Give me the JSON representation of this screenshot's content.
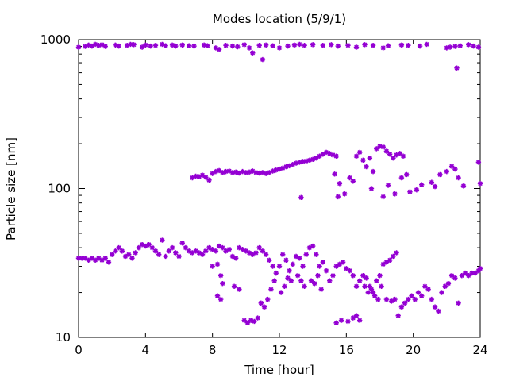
{
  "chart_data": {
    "type": "scatter",
    "title": "Modes location (5/9/1)",
    "xlabel": "Time [hour]",
    "ylabel": "Particle size [nm]",
    "xlim": [
      0,
      24
    ],
    "ylim": [
      10,
      1000
    ],
    "yscale": "log",
    "xticks": [
      0,
      4,
      8,
      12,
      16,
      20,
      24
    ],
    "xtick_labels": [
      "0",
      "4",
      "8",
      "12",
      "16",
      "20",
      "24"
    ],
    "yticks": [
      10,
      100,
      1000
    ],
    "ytick_labels": [
      "10",
      "100",
      "1000"
    ],
    "grid": false,
    "legend": "none",
    "marker": "asterisk",
    "color": "#9400d3",
    "series": [
      {
        "points": [
          [
            0.0,
            890
          ],
          [
            0.4,
            900
          ],
          [
            0.6,
            920
          ],
          [
            0.8,
            905
          ],
          [
            1.0,
            930
          ],
          [
            1.2,
            915
          ],
          [
            1.4,
            925
          ],
          [
            1.6,
            900
          ],
          [
            2.2,
            920
          ],
          [
            2.4,
            905
          ],
          [
            2.9,
            915
          ],
          [
            3.1,
            930
          ],
          [
            3.3,
            925
          ],
          [
            3.8,
            890
          ],
          [
            4.0,
            920
          ],
          [
            4.3,
            905
          ],
          [
            4.6,
            915
          ],
          [
            5.0,
            930
          ],
          [
            5.2,
            910
          ],
          [
            5.6,
            920
          ],
          [
            5.8,
            905
          ],
          [
            6.2,
            920
          ],
          [
            6.6,
            910
          ],
          [
            6.9,
            905
          ],
          [
            7.5,
            920
          ],
          [
            7.7,
            910
          ],
          [
            8.2,
            880
          ],
          [
            8.4,
            860
          ],
          [
            8.8,
            915
          ],
          [
            9.2,
            905
          ],
          [
            9.5,
            895
          ],
          [
            9.9,
            925
          ],
          [
            10.2,
            880
          ],
          [
            10.4,
            815
          ],
          [
            10.8,
            915
          ],
          [
            11.0,
            735
          ],
          [
            11.2,
            920
          ],
          [
            11.6,
            910
          ],
          [
            12.0,
            880
          ],
          [
            12.5,
            905
          ],
          [
            12.9,
            920
          ],
          [
            13.2,
            930
          ],
          [
            13.5,
            915
          ],
          [
            14.0,
            925
          ],
          [
            14.6,
            915
          ],
          [
            15.1,
            925
          ],
          [
            15.5,
            905
          ],
          [
            16.1,
            915
          ],
          [
            16.6,
            890
          ],
          [
            17.1,
            925
          ],
          [
            17.6,
            915
          ],
          [
            18.2,
            880
          ],
          [
            18.5,
            910
          ],
          [
            19.3,
            920
          ],
          [
            19.7,
            915
          ],
          [
            20.4,
            905
          ],
          [
            20.8,
            930
          ],
          [
            22.0,
            880
          ],
          [
            22.2,
            890
          ],
          [
            22.5,
            900
          ],
          [
            22.6,
            645
          ],
          [
            22.8,
            910
          ],
          [
            23.3,
            925
          ],
          [
            23.6,
            905
          ],
          [
            23.9,
            890
          ]
        ]
      },
      {
        "points": [
          [
            6.8,
            118
          ],
          [
            7.0,
            121
          ],
          [
            7.2,
            120
          ],
          [
            7.4,
            123
          ],
          [
            7.6,
            119
          ],
          [
            7.8,
            114
          ],
          [
            8.0,
            126
          ],
          [
            8.2,
            130
          ],
          [
            8.4,
            132
          ],
          [
            8.6,
            128
          ],
          [
            8.8,
            130
          ],
          [
            9.0,
            131
          ],
          [
            9.2,
            128
          ],
          [
            9.4,
            129
          ],
          [
            9.6,
            127
          ],
          [
            9.8,
            130
          ],
          [
            10.0,
            128
          ],
          [
            10.2,
            129
          ],
          [
            10.4,
            131
          ],
          [
            10.6,
            128
          ],
          [
            10.8,
            127
          ],
          [
            11.0,
            128
          ],
          [
            11.2,
            126
          ],
          [
            11.4,
            128
          ],
          [
            11.6,
            131
          ],
          [
            11.8,
            133
          ],
          [
            12.0,
            135
          ],
          [
            12.2,
            137
          ],
          [
            12.4,
            140
          ],
          [
            12.6,
            142
          ],
          [
            12.8,
            145
          ],
          [
            13.0,
            148
          ],
          [
            13.2,
            150
          ],
          [
            13.4,
            152
          ],
          [
            13.6,
            153
          ],
          [
            13.8,
            155
          ],
          [
            14.0,
            157
          ],
          [
            14.2,
            160
          ],
          [
            14.4,
            165
          ],
          [
            14.6,
            170
          ],
          [
            14.8,
            175
          ],
          [
            15.0,
            172
          ],
          [
            15.2,
            168
          ],
          [
            15.4,
            165
          ],
          [
            13.3,
            87
          ],
          [
            15.5,
            88
          ],
          [
            15.3,
            125
          ],
          [
            15.6,
            108
          ],
          [
            15.9,
            92
          ],
          [
            16.2,
            118
          ],
          [
            16.4,
            112
          ],
          [
            16.6,
            165
          ],
          [
            16.8,
            175
          ],
          [
            17.0,
            155
          ],
          [
            17.2,
            140
          ],
          [
            17.4,
            160
          ],
          [
            17.5,
            100
          ],
          [
            17.6,
            130
          ],
          [
            17.8,
            185
          ],
          [
            18.0,
            192
          ],
          [
            18.2,
            190
          ],
          [
            18.4,
            178
          ],
          [
            18.6,
            170
          ],
          [
            18.8,
            160
          ],
          [
            19.0,
            168
          ],
          [
            19.2,
            172
          ],
          [
            19.4,
            165
          ],
          [
            18.2,
            88
          ],
          [
            18.5,
            105
          ],
          [
            18.9,
            92
          ],
          [
            19.3,
            118
          ],
          [
            19.6,
            124
          ],
          [
            19.8,
            95
          ],
          [
            20.2,
            98
          ],
          [
            20.5,
            106
          ],
          [
            21.1,
            110
          ],
          [
            21.3,
            103
          ],
          [
            21.6,
            124
          ],
          [
            22.0,
            130
          ],
          [
            22.3,
            141
          ],
          [
            22.5,
            135
          ],
          [
            22.7,
            118
          ],
          [
            23.0,
            104
          ],
          [
            23.9,
            150
          ],
          [
            24.0,
            108
          ]
        ]
      },
      {
        "points": [
          [
            0.0,
            34
          ],
          [
            0.2,
            34
          ],
          [
            0.4,
            34
          ],
          [
            0.6,
            33
          ],
          [
            0.8,
            34
          ],
          [
            1.0,
            33
          ],
          [
            1.2,
            34
          ],
          [
            1.4,
            33
          ],
          [
            1.6,
            34
          ],
          [
            1.8,
            32
          ],
          [
            2.0,
            36
          ],
          [
            2.2,
            38
          ],
          [
            2.4,
            40
          ],
          [
            2.6,
            38
          ],
          [
            2.8,
            35
          ],
          [
            3.0,
            36
          ],
          [
            3.2,
            34
          ],
          [
            3.4,
            37
          ],
          [
            3.6,
            40
          ],
          [
            3.8,
            42
          ],
          [
            4.0,
            41
          ],
          [
            4.2,
            42
          ],
          [
            4.4,
            40
          ],
          [
            4.6,
            38
          ],
          [
            4.8,
            36
          ],
          [
            5.0,
            45
          ],
          [
            5.2,
            35
          ],
          [
            5.4,
            38
          ],
          [
            5.6,
            40
          ],
          [
            5.8,
            37
          ],
          [
            6.0,
            35
          ],
          [
            6.2,
            43
          ],
          [
            6.4,
            40
          ],
          [
            6.6,
            38
          ],
          [
            6.8,
            37
          ],
          [
            7.0,
            38
          ],
          [
            7.2,
            37
          ],
          [
            7.4,
            36
          ],
          [
            7.6,
            38
          ],
          [
            7.8,
            40
          ],
          [
            8.0,
            39
          ],
          [
            8.2,
            38
          ],
          [
            8.4,
            41
          ],
          [
            8.6,
            40
          ],
          [
            8.8,
            38
          ],
          [
            9.0,
            39
          ],
          [
            9.2,
            35
          ],
          [
            9.4,
            34
          ],
          [
            9.6,
            40
          ],
          [
            9.8,
            39
          ],
          [
            10.0,
            38
          ],
          [
            10.2,
            37
          ],
          [
            10.4,
            36
          ],
          [
            10.6,
            37
          ],
          [
            10.8,
            40
          ],
          [
            11.0,
            38
          ],
          [
            11.2,
            36
          ],
          [
            11.4,
            33
          ],
          [
            11.6,
            30
          ],
          [
            11.8,
            27
          ],
          [
            12.0,
            30
          ],
          [
            12.2,
            36
          ],
          [
            12.4,
            33
          ],
          [
            12.6,
            28
          ],
          [
            12.8,
            31
          ],
          [
            13.0,
            35
          ],
          [
            13.2,
            34
          ],
          [
            13.4,
            30
          ],
          [
            13.6,
            36
          ],
          [
            13.8,
            40
          ],
          [
            14.0,
            41
          ],
          [
            14.2,
            36
          ],
          [
            14.4,
            30
          ],
          [
            14.6,
            32
          ],
          [
            14.8,
            28
          ],
          [
            15.0,
            24
          ],
          [
            15.2,
            26
          ],
          [
            15.4,
            30
          ],
          [
            15.6,
            31
          ],
          [
            15.8,
            32
          ],
          [
            16.0,
            29
          ],
          [
            16.2,
            28
          ],
          [
            16.4,
            26
          ],
          [
            16.6,
            22
          ],
          [
            16.8,
            24
          ],
          [
            17.0,
            26
          ],
          [
            17.2,
            25
          ],
          [
            17.4,
            22
          ],
          [
            17.6,
            20
          ],
          [
            17.8,
            24
          ],
          [
            18.0,
            26
          ],
          [
            18.2,
            31
          ],
          [
            18.4,
            32
          ],
          [
            18.6,
            33
          ],
          [
            18.8,
            35
          ],
          [
            19.0,
            37
          ],
          [
            8.0,
            30
          ],
          [
            8.3,
            31
          ],
          [
            8.5,
            26
          ],
          [
            8.6,
            23
          ],
          [
            8.3,
            19
          ],
          [
            8.5,
            18
          ],
          [
            9.3,
            22
          ],
          [
            9.6,
            21
          ],
          [
            9.9,
            13
          ],
          [
            10.1,
            12.5
          ],
          [
            10.3,
            13
          ],
          [
            10.5,
            12.8
          ],
          [
            10.7,
            13.5
          ],
          [
            10.9,
            17
          ],
          [
            11.1,
            16
          ],
          [
            11.3,
            18
          ],
          [
            11.5,
            21
          ],
          [
            11.7,
            24
          ],
          [
            12.1,
            20
          ],
          [
            12.3,
            22
          ],
          [
            12.5,
            25
          ],
          [
            12.7,
            24
          ],
          [
            13.1,
            26
          ],
          [
            13.3,
            24
          ],
          [
            13.5,
            22
          ],
          [
            13.9,
            24
          ],
          [
            14.1,
            23
          ],
          [
            14.3,
            26
          ],
          [
            14.5,
            21
          ],
          [
            15.4,
            12.5
          ],
          [
            15.7,
            13
          ],
          [
            16.1,
            12.8
          ],
          [
            16.4,
            13.5
          ],
          [
            16.6,
            14
          ],
          [
            16.8,
            13
          ],
          [
            17.1,
            22
          ],
          [
            17.3,
            20
          ],
          [
            17.5,
            21
          ],
          [
            17.7,
            19
          ],
          [
            17.9,
            18
          ],
          [
            18.1,
            22
          ],
          [
            18.4,
            18
          ],
          [
            18.7,
            17.5
          ],
          [
            18.9,
            18
          ],
          [
            19.1,
            14
          ],
          [
            19.3,
            16
          ],
          [
            19.5,
            17
          ],
          [
            19.7,
            18
          ],
          [
            19.9,
            19
          ],
          [
            20.1,
            18
          ],
          [
            20.3,
            20
          ],
          [
            20.5,
            19
          ],
          [
            20.7,
            22
          ],
          [
            20.9,
            21
          ],
          [
            21.1,
            18
          ],
          [
            21.3,
            16
          ],
          [
            21.5,
            15
          ],
          [
            21.7,
            20
          ],
          [
            21.9,
            22
          ],
          [
            22.1,
            23
          ],
          [
            22.3,
            26
          ],
          [
            22.5,
            25
          ],
          [
            22.7,
            17
          ],
          [
            22.9,
            26
          ],
          [
            23.1,
            27
          ],
          [
            23.3,
            26
          ],
          [
            23.5,
            27
          ],
          [
            23.7,
            27
          ],
          [
            23.9,
            28
          ],
          [
            24.0,
            29
          ]
        ]
      }
    ]
  }
}
